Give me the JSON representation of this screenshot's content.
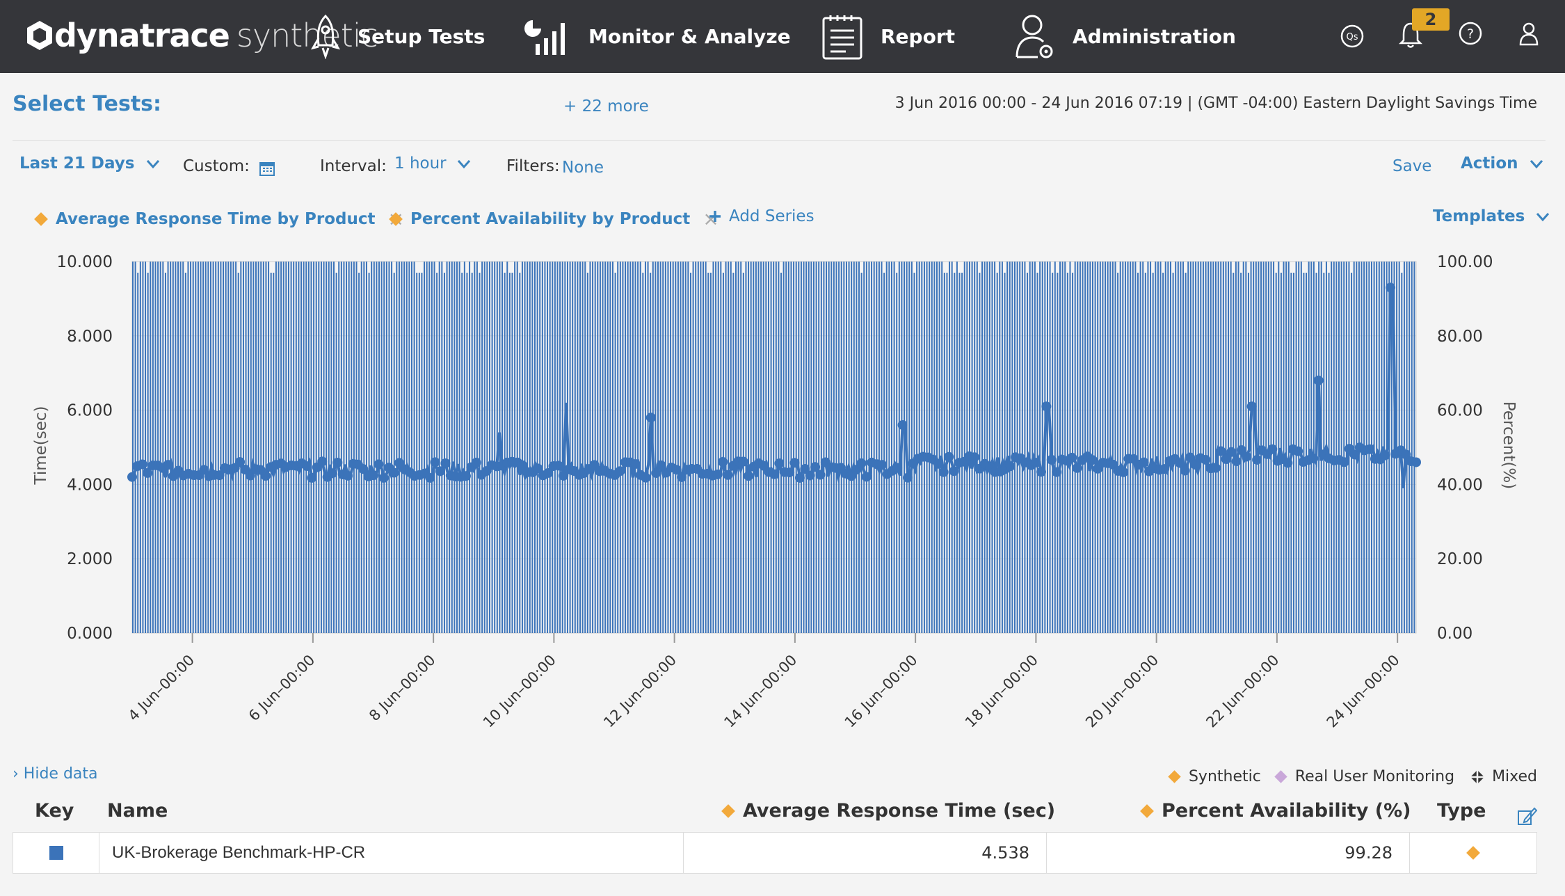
{
  "app": {
    "brand_main": "dynatrace",
    "brand_sub": "synthetic"
  },
  "nav": {
    "setup": "Setup Tests",
    "monitor": "Monitor & Analyze",
    "report": "Report",
    "admin": "Administration",
    "notifications_count": "2"
  },
  "header": {
    "select_tests": "Select Tests:",
    "more": "+ 22 more",
    "date_range": "3 Jun 2016 00:00 - 24 Jun 2016 07:19  | (GMT -04:00) Eastern Daylight Savings Time"
  },
  "controls": {
    "range": "Last 21 Days",
    "custom_label": "Custom:",
    "interval_label": "Interval:",
    "interval_value": "1 hour",
    "filters_label": "Filters:",
    "filters_value": "None",
    "save": "Save",
    "action": "Action",
    "templates": "Templates",
    "add_series": "Add Series"
  },
  "series_tags": [
    "Average Response Time by Product",
    "Percent Availability by Product"
  ],
  "colors": {
    "accent": "#3a84bf",
    "series": "#3b73b9",
    "synthetic": "#f2a93b",
    "rum": "#c9a7d9",
    "topbar": "#35363a"
  },
  "chart_data": {
    "type": "bar",
    "x_ticks": [
      "4 Jun–00:00",
      "6 Jun–00:00",
      "8 Jun–00:00",
      "10 Jun–00:00",
      "12 Jun–00:00",
      "14 Jun–00:00",
      "16 Jun–00:00",
      "18 Jun–00:00",
      "20 Jun–00:00",
      "22 Jun–00:00",
      "24 Jun–00:00"
    ],
    "left_axis": {
      "label": "Time(sec)",
      "min": 0,
      "max": 10,
      "ticks": [
        "0.000",
        "2.000",
        "4.000",
        "6.000",
        "8.000",
        "10.000"
      ]
    },
    "right_axis": {
      "label": "Percent(%)",
      "min": 0,
      "max": 100,
      "ticks": [
        "0.00",
        "20.00",
        "40.00",
        "60.00",
        "80.00",
        "100.00"
      ]
    },
    "series": [
      {
        "name": "Percent Availability by Product",
        "type": "bar",
        "axis": "right",
        "typical_value": 100,
        "dips_to": 97
      },
      {
        "name": "Average Response Time by Product",
        "type": "line",
        "axis": "left",
        "baseline": 4.4,
        "spikes": [
          {
            "day": 3.0,
            "value": 4.2
          },
          {
            "day": 9.1,
            "value": 5.4
          },
          {
            "day": 10.2,
            "value": 6.2
          },
          {
            "day": 11.6,
            "value": 5.8
          },
          {
            "day": 15.8,
            "value": 5.6
          },
          {
            "day": 18.2,
            "value": 6.1
          },
          {
            "day": 21.6,
            "value": 6.1
          },
          {
            "day": 22.7,
            "value": 6.8
          },
          {
            "day": 23.9,
            "value": 9.3
          },
          {
            "day": 24.1,
            "value": 3.9
          }
        ]
      }
    ]
  },
  "data_panel": {
    "hide_label": "› Hide data",
    "legend": [
      "Synthetic",
      "Real User Monitoring",
      "Mixed"
    ],
    "columns": {
      "key": "Key",
      "name": "Name",
      "avg": "Average Response Time (sec)",
      "pct": "Percent Availability (%)",
      "type": "Type"
    },
    "rows": [
      {
        "name": "UK-Brokerage Benchmark-HP-CR",
        "avg": "4.538",
        "pct": "99.28"
      }
    ]
  }
}
